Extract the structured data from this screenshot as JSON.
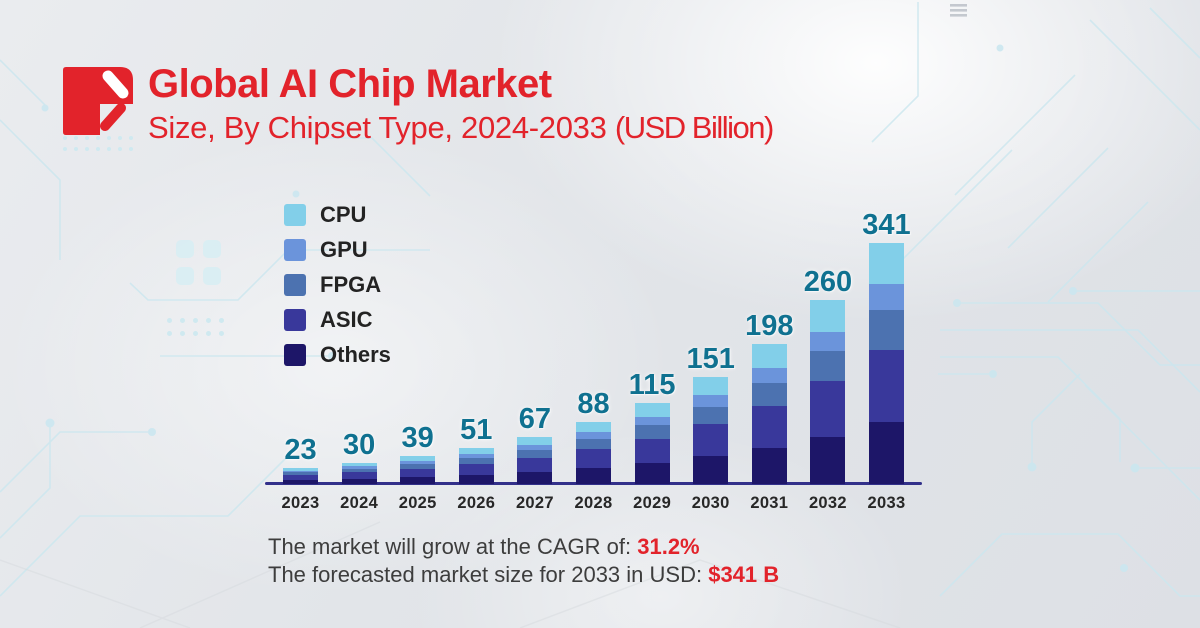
{
  "header": {
    "title": "Global AI Chip Market",
    "subtitle": "Size, By Chipset Type, 2024-2033",
    "subtitle_unit": "(USD Billion)"
  },
  "brand": {
    "accent_red": "#e2232b",
    "logo_icon": "pen-slash-monogram"
  },
  "legend": {
    "items": [
      {
        "label": "CPU",
        "color": "#82cfe9"
      },
      {
        "label": "GPU",
        "color": "#6b94db"
      },
      {
        "label": "FPGA",
        "color": "#4c72b0"
      },
      {
        "label": "ASIC",
        "color": "#39389b"
      },
      {
        "label": "Others",
        "color": "#1d1668"
      }
    ]
  },
  "chart_data": {
    "type": "bar",
    "stacked": true,
    "title": "Global AI Chip Market Size, By Chipset Type, 2024-2033",
    "ylabel": "USD Billion",
    "xlabel": "",
    "grid": false,
    "legend_position": "top-left",
    "categories": [
      "2023",
      "2024",
      "2025",
      "2026",
      "2027",
      "2028",
      "2029",
      "2030",
      "2031",
      "2032",
      "2033"
    ],
    "totals": [
      23,
      30,
      39,
      51,
      67,
      88,
      115,
      151,
      198,
      260,
      341
    ],
    "series": [
      {
        "name": "CPU",
        "color": "#82cfe9",
        "values": [
          3.9,
          5.1,
          6.6,
          8.7,
          11.4,
          15.0,
          19.6,
          25.7,
          33.7,
          44.2,
          58.0
        ]
      },
      {
        "name": "GPU",
        "color": "#6b94db",
        "values": [
          2.5,
          3.2,
          4.2,
          5.5,
          7.2,
          9.4,
          12.3,
          16.2,
          21.2,
          27.8,
          36.5
        ]
      },
      {
        "name": "FPGA",
        "color": "#4c72b0",
        "values": [
          3.8,
          5.0,
          6.4,
          8.4,
          11.1,
          14.5,
          19.0,
          24.9,
          32.7,
          42.9,
          56.3
        ]
      },
      {
        "name": "ASIC",
        "color": "#39389b",
        "values": [
          6.9,
          9.0,
          11.7,
          15.3,
          20.1,
          26.4,
          34.5,
          45.3,
          59.4,
          78.0,
          102.3
        ]
      },
      {
        "name": "Others",
        "color": "#1d1668",
        "values": [
          5.9,
          7.7,
          10.1,
          13.2,
          17.3,
          22.7,
          29.7,
          39.0,
          51.1,
          67.1,
          88.0
        ]
      }
    ],
    "value_label_color": "#0f7190",
    "axis_color": "#32308a"
  },
  "footer": {
    "line1_text": "The market will grow at the CAGR of: ",
    "line1_value": "31.2%",
    "line2_text": "The forecasted market size for 2033 in USD: ",
    "line2_value": "$341 B"
  }
}
